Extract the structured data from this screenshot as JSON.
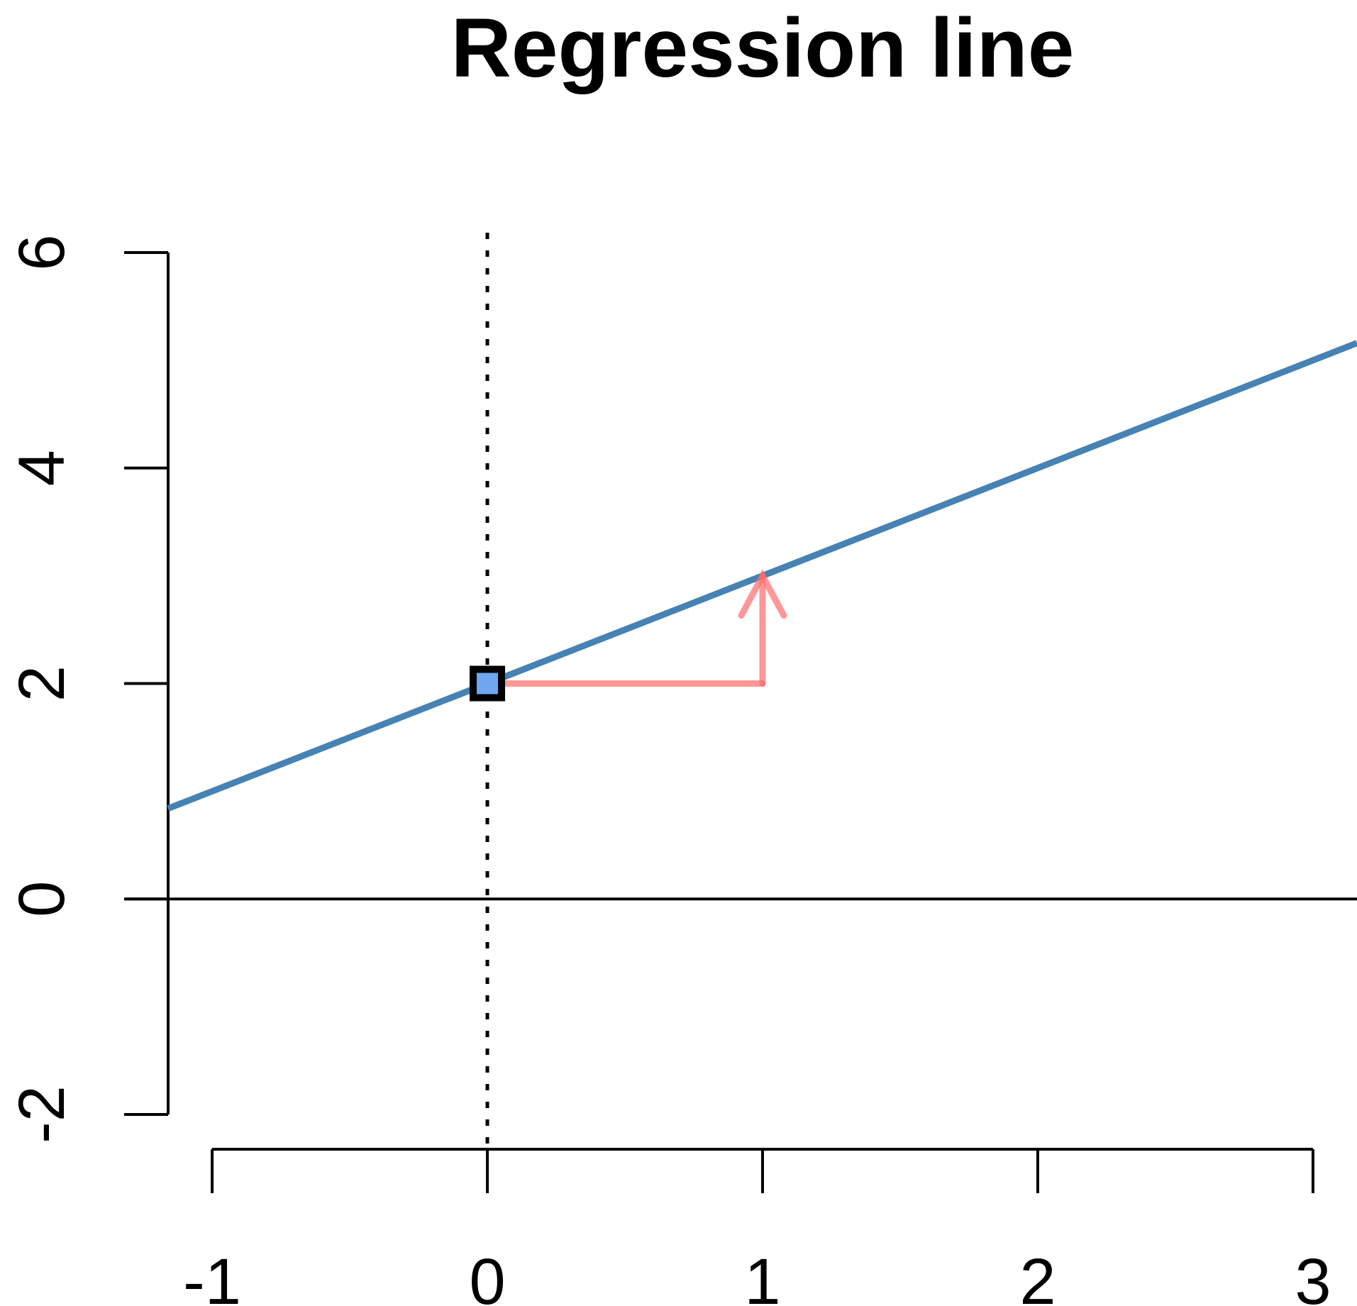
{
  "chart_data": {
    "type": "line",
    "title": "Regression line",
    "xlabel": "",
    "ylabel": "",
    "xlim": [
      -1.16,
      3.16
    ],
    "ylim": [
      -2,
      6
    ],
    "x_ticks": [
      -1,
      0,
      1,
      2,
      3
    ],
    "x_tick_labels": [
      "-1",
      "0",
      "1",
      "2",
      "3"
    ],
    "y_ticks": [
      -2,
      0,
      2,
      4,
      6
    ],
    "y_tick_labels": [
      "-2",
      "0",
      "2",
      "4",
      "6"
    ],
    "grid": false,
    "legend": "none",
    "regression_line": {
      "intercept": 2,
      "slope": 1,
      "x": [
        -1.16,
        3.16
      ],
      "y": [
        0.84,
        5.16
      ],
      "color": "#4682b4"
    },
    "intercept_point": {
      "x": 0,
      "y": 2,
      "fill": "#6ea6f0",
      "border": "#000000"
    },
    "horizontal_zero_line": {
      "y": 0,
      "color": "#000000"
    },
    "vertical_reference_line": {
      "x": 0,
      "style": "dotted",
      "color": "#000000"
    },
    "slope_arrows": {
      "run": {
        "from": [
          0,
          2
        ],
        "to": [
          1,
          2
        ]
      },
      "rise": {
        "from": [
          1,
          2
        ],
        "to": [
          1,
          3
        ]
      },
      "color": "#ff6b6b"
    }
  }
}
